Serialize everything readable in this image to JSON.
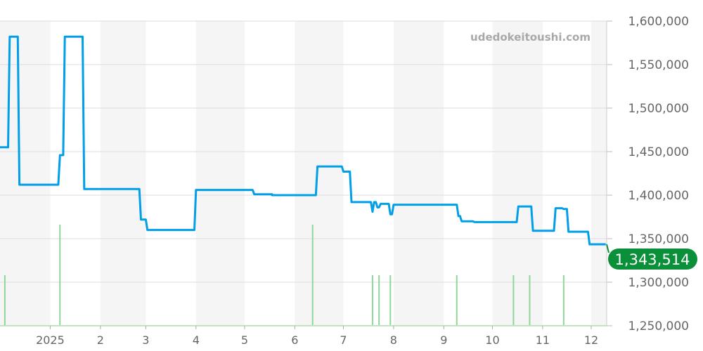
{
  "watermark": "udedokeitoushi.com",
  "chart_data": {
    "type": "line",
    "title": "",
    "xlabel": "",
    "ylabel": "",
    "x_range": [
      "2024-12-01",
      "2025-12-10"
    ],
    "ylim": [
      1250000,
      1600000
    ],
    "grid": true,
    "shaded_alternate_months": true,
    "x_ticks": [
      {
        "date": "2025-01-01",
        "label": "2025"
      },
      {
        "date": "2025-02-01",
        "label": "2"
      },
      {
        "date": "2025-03-01",
        "label": "3"
      },
      {
        "date": "2025-04-01",
        "label": "4"
      },
      {
        "date": "2025-05-01",
        "label": "5"
      },
      {
        "date": "2025-06-01",
        "label": "6"
      },
      {
        "date": "2025-07-01",
        "label": "7"
      },
      {
        "date": "2025-08-01",
        "label": "8"
      },
      {
        "date": "2025-09-01",
        "label": "9"
      },
      {
        "date": "2025-10-01",
        "label": "10"
      },
      {
        "date": "2025-11-01",
        "label": "11"
      },
      {
        "date": "2025-12-01",
        "label": "12"
      }
    ],
    "y_ticks": [
      {
        "value": 1250000,
        "label": "1,250,000"
      },
      {
        "value": 1300000,
        "label": "1,300,000"
      },
      {
        "value": 1350000,
        "label": "1,350,000"
      },
      {
        "value": 1400000,
        "label": "1,400,000"
      },
      {
        "value": 1450000,
        "label": "1,450,000"
      },
      {
        "value": 1500000,
        "label": "1,500,000"
      },
      {
        "value": 1550000,
        "label": "1,550,000"
      },
      {
        "value": 1600000,
        "label": "1,600,000"
      }
    ],
    "colors": {
      "line": "#009fe8",
      "volume": "#8fd69a",
      "last_label_bg": "#0a9038",
      "shade": "#f5f5f5",
      "grid": "#dddddd"
    },
    "last_value": {
      "value": 1343514,
      "label": "1,343,514"
    },
    "series": [
      {
        "points": [
          [
            "2024-12-01",
            1455000
          ],
          [
            "2024-12-06",
            1455000
          ],
          [
            "2024-12-07",
            1582000
          ],
          [
            "2024-12-12",
            1582000
          ],
          [
            "2024-12-13",
            1412000
          ],
          [
            "2025-01-06",
            1412000
          ],
          [
            "2025-01-07",
            1446000
          ],
          [
            "2025-01-09",
            1446000
          ],
          [
            "2025-01-10",
            1582000
          ],
          [
            "2025-01-21",
            1582000
          ],
          [
            "2025-01-22",
            1407000
          ],
          [
            "2025-02-25",
            1407000
          ],
          [
            "2025-02-26",
            1372000
          ],
          [
            "2025-03-01",
            1372000
          ],
          [
            "2025-03-02",
            1360000
          ],
          [
            "2025-03-31",
            1360000
          ],
          [
            "2025-04-01",
            1406000
          ],
          [
            "2025-05-06",
            1406000
          ],
          [
            "2025-05-07",
            1401000
          ],
          [
            "2025-05-18",
            1401000
          ],
          [
            "2025-05-18",
            1400000
          ],
          [
            "2025-06-14",
            1400000
          ],
          [
            "2025-06-15",
            1433000
          ],
          [
            "2025-06-30",
            1433000
          ],
          [
            "2025-07-01",
            1427000
          ],
          [
            "2025-07-05",
            1427000
          ],
          [
            "2025-07-06",
            1392000
          ],
          [
            "2025-07-18",
            1392000
          ],
          [
            "2025-07-19",
            1381000
          ],
          [
            "2025-07-20",
            1392000
          ],
          [
            "2025-07-21",
            1392000
          ],
          [
            "2025-07-22",
            1386000
          ],
          [
            "2025-07-23",
            1386000
          ],
          [
            "2025-07-24",
            1390000
          ],
          [
            "2025-07-29",
            1390000
          ],
          [
            "2025-07-30",
            1378000
          ],
          [
            "2025-07-31",
            1378000
          ],
          [
            "2025-08-01",
            1389000
          ],
          [
            "2025-09-09",
            1389000
          ],
          [
            "2025-09-10",
            1376000
          ],
          [
            "2025-09-11",
            1376000
          ],
          [
            "2025-09-12",
            1370000
          ],
          [
            "2025-09-19",
            1370000
          ],
          [
            "2025-09-20",
            1369000
          ],
          [
            "2025-10-16",
            1369000
          ],
          [
            "2025-10-17",
            1387000
          ],
          [
            "2025-10-25",
            1387000
          ],
          [
            "2025-10-26",
            1359000
          ],
          [
            "2025-11-08",
            1359000
          ],
          [
            "2025-11-09",
            1385000
          ],
          [
            "2025-11-13",
            1385000
          ],
          [
            "2025-11-14",
            1384000
          ],
          [
            "2025-11-16",
            1384000
          ],
          [
            "2025-11-17",
            1358000
          ],
          [
            "2025-11-29",
            1358000
          ],
          [
            "2025-11-30",
            1343514
          ],
          [
            "2025-12-10",
            1343514
          ]
        ]
      }
    ],
    "volume": [
      [
        "2024-12-04",
        1
      ],
      [
        "2025-01-07",
        2
      ],
      [
        "2025-06-12",
        2
      ],
      [
        "2025-07-19",
        1
      ],
      [
        "2025-07-23",
        1
      ],
      [
        "2025-07-30",
        1
      ],
      [
        "2025-09-09",
        1
      ],
      [
        "2025-10-14",
        1
      ],
      [
        "2025-10-24",
        1
      ],
      [
        "2025-11-14",
        1
      ]
    ]
  }
}
